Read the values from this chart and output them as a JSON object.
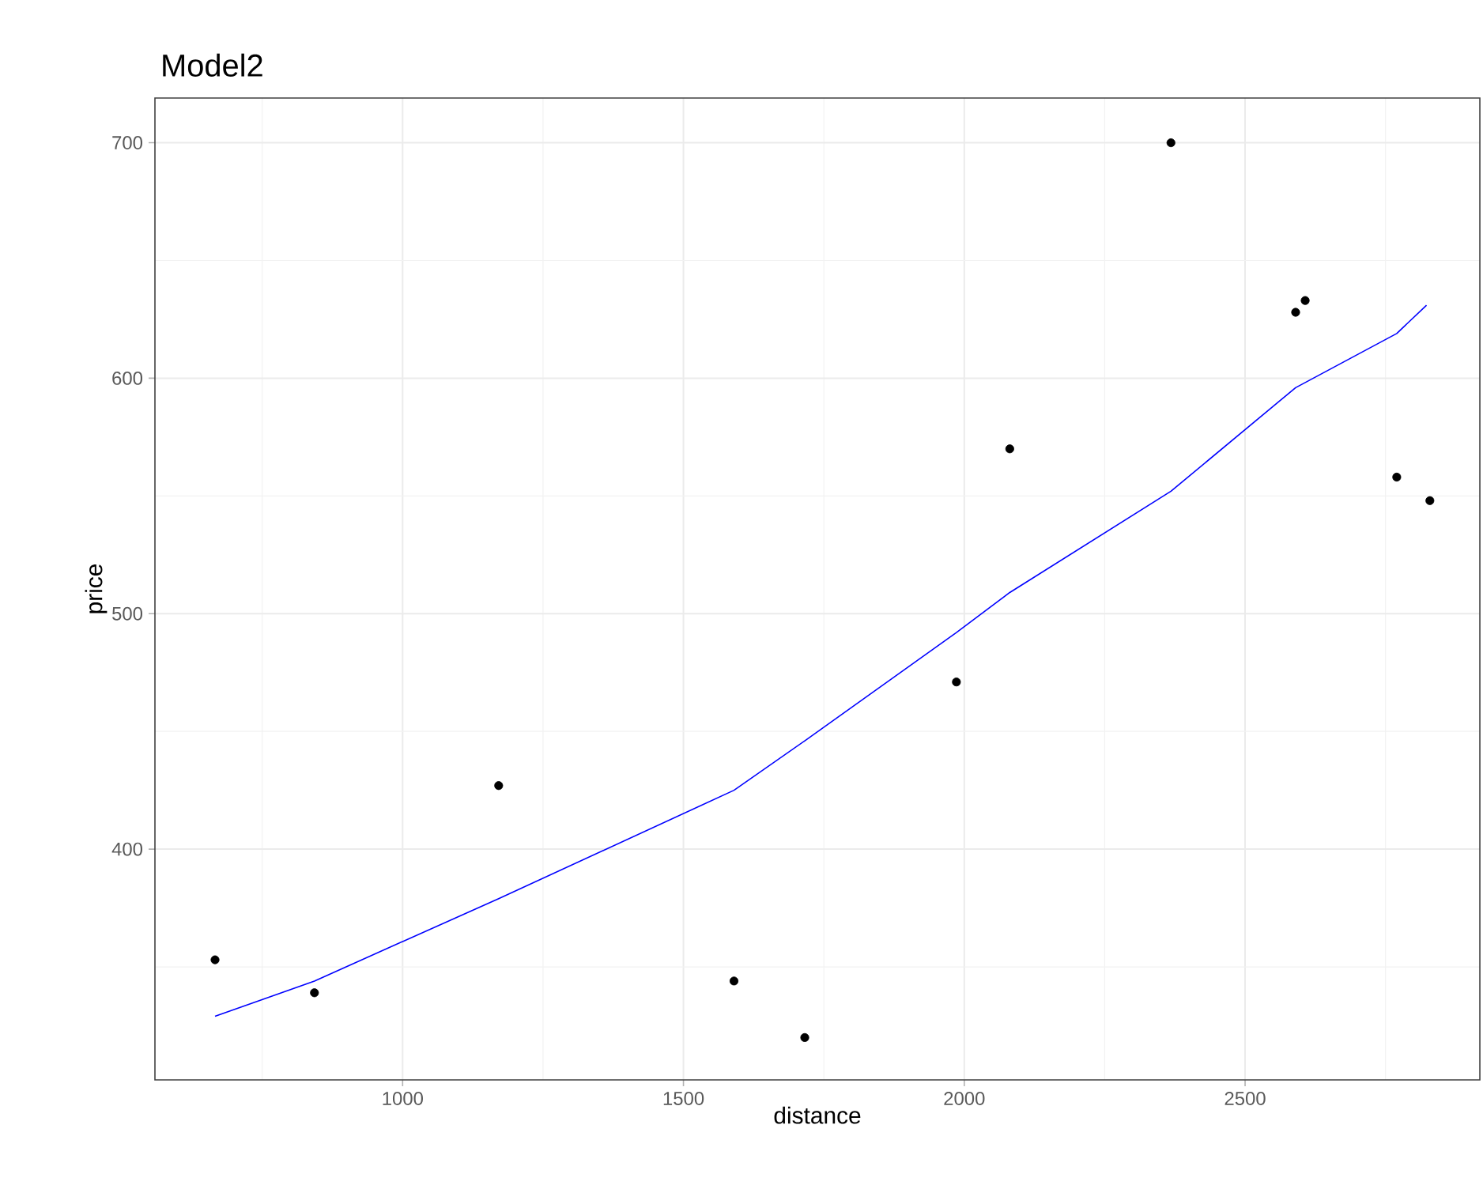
{
  "chart_data": {
    "type": "scatter",
    "title": "Model2",
    "xlabel": "distance",
    "ylabel": "price",
    "xlim": [
      559,
      2918
    ],
    "ylim": [
      302,
      719
    ],
    "xticks": [
      1000,
      1500,
      2000,
      2500
    ],
    "yticks": [
      400,
      500,
      600,
      700
    ],
    "grid": true,
    "series": [
      {
        "color": "#000000",
        "marker": "circle",
        "x": [
          666,
          843,
          1171,
          1590,
          1716,
          1986,
          2081,
          2368,
          2590,
          2607,
          2770,
          2829
        ],
        "values": [
          353,
          339,
          427,
          344,
          320,
          471,
          570,
          700,
          628,
          633,
          558,
          548
        ]
      },
      {
        "type": "line",
        "color": "#0000ff",
        "line_style": "solid",
        "marker": "none",
        "x": [
          666,
          843,
          1171,
          1590,
          1716,
          1986,
          2081,
          2368,
          2590,
          2770,
          2823
        ],
        "values": [
          329,
          344,
          379,
          425,
          446,
          492,
          509,
          552,
          596,
          619,
          631
        ]
      }
    ]
  }
}
